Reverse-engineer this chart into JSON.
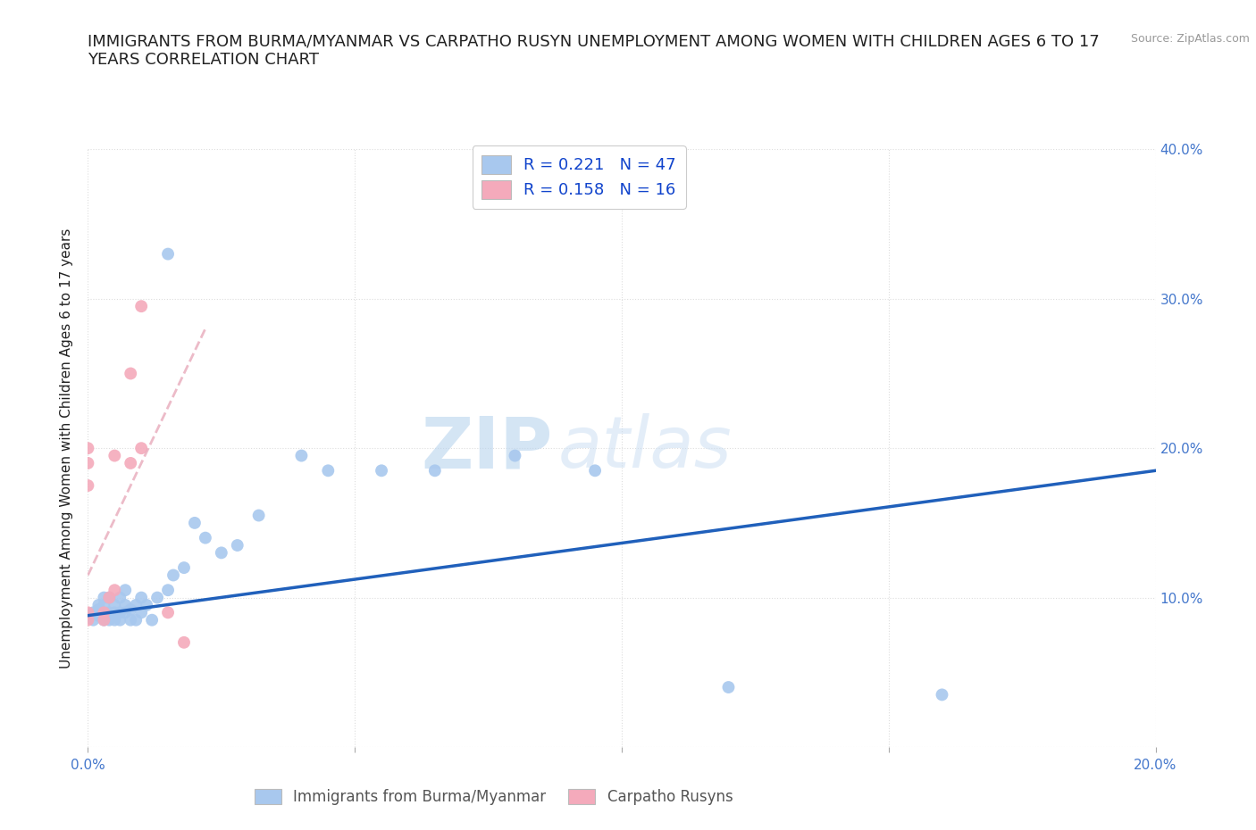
{
  "title": "IMMIGRANTS FROM BURMA/MYANMAR VS CARPATHO RUSYN UNEMPLOYMENT AMONG WOMEN WITH CHILDREN AGES 6 TO 17\nYEARS CORRELATION CHART",
  "source_text": "Source: ZipAtlas.com",
  "ylabel": "Unemployment Among Women with Children Ages 6 to 17 years",
  "xlim": [
    0.0,
    0.2
  ],
  "ylim": [
    0.0,
    0.4
  ],
  "xticks": [
    0.0,
    0.05,
    0.1,
    0.15,
    0.2
  ],
  "yticks": [
    0.0,
    0.1,
    0.2,
    0.3,
    0.4
  ],
  "blue_scatter_x": [
    0.001,
    0.001,
    0.002,
    0.002,
    0.002,
    0.003,
    0.003,
    0.003,
    0.003,
    0.004,
    0.004,
    0.004,
    0.005,
    0.005,
    0.005,
    0.006,
    0.006,
    0.006,
    0.007,
    0.007,
    0.007,
    0.008,
    0.008,
    0.009,
    0.009,
    0.01,
    0.01,
    0.011,
    0.012,
    0.013,
    0.015,
    0.016,
    0.018,
    0.02,
    0.022,
    0.025,
    0.028,
    0.032,
    0.04,
    0.045,
    0.055,
    0.065,
    0.08,
    0.095,
    0.12,
    0.16,
    0.015
  ],
  "blue_scatter_y": [
    0.085,
    0.09,
    0.088,
    0.092,
    0.095,
    0.085,
    0.09,
    0.095,
    0.1,
    0.085,
    0.09,
    0.1,
    0.085,
    0.09,
    0.095,
    0.085,
    0.09,
    0.1,
    0.09,
    0.095,
    0.105,
    0.085,
    0.092,
    0.085,
    0.095,
    0.09,
    0.1,
    0.095,
    0.085,
    0.1,
    0.105,
    0.115,
    0.12,
    0.15,
    0.14,
    0.13,
    0.135,
    0.155,
    0.195,
    0.185,
    0.185,
    0.185,
    0.195,
    0.185,
    0.04,
    0.035,
    0.33
  ],
  "pink_scatter_x": [
    0.0,
    0.0,
    0.0,
    0.0,
    0.0,
    0.003,
    0.003,
    0.004,
    0.005,
    0.005,
    0.008,
    0.008,
    0.01,
    0.01,
    0.015,
    0.018
  ],
  "pink_scatter_y": [
    0.085,
    0.09,
    0.175,
    0.19,
    0.2,
    0.085,
    0.09,
    0.1,
    0.105,
    0.195,
    0.19,
    0.25,
    0.2,
    0.295,
    0.09,
    0.07
  ],
  "blue_line_x": [
    0.0,
    0.2
  ],
  "blue_line_y": [
    0.088,
    0.185
  ],
  "pink_line_x": [
    0.0,
    0.022
  ],
  "pink_line_y": [
    0.115,
    0.28
  ],
  "blue_color": "#A8C8EE",
  "pink_color": "#F4AABB",
  "blue_line_color": "#2060BB",
  "pink_line_color": "#E8AABB",
  "legend_R1": "R = 0.221",
  "legend_N1": "N = 47",
  "legend_R2": "R = 0.158",
  "legend_N2": "N = 16",
  "legend_label1": "Immigrants from Burma/Myanmar",
  "legend_label2": "Carpatho Rusyns",
  "watermark_zip": "ZIP",
  "watermark_atlas": "atlas",
  "title_fontsize": 13,
  "label_fontsize": 11,
  "tick_fontsize": 11,
  "tick_color": "#4477CC",
  "title_color": "#222222",
  "grid_color": "#DDDDDD",
  "background_color": "#FFFFFF"
}
